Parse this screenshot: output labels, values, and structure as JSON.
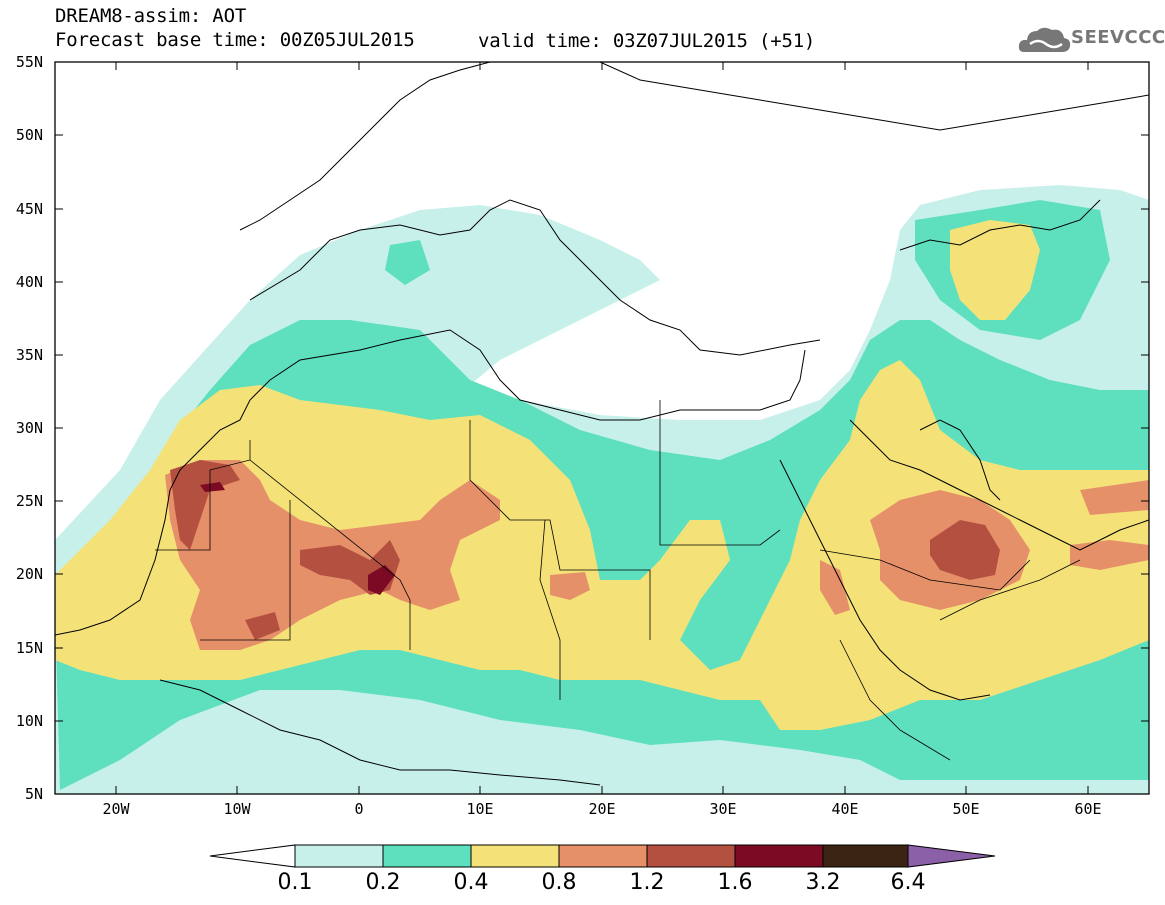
{
  "header": {
    "title": "DREAM8-assim: AOT",
    "base_time": "Forecast base time: 00Z05JUL2015",
    "valid_time": "valid time: 03Z07JUL2015 (+51)"
  },
  "logo": {
    "text": "SEEVCCC",
    "icon": "cloud-icon"
  },
  "map": {
    "lon_range": [
      -25,
      65
    ],
    "lat_range": [
      5,
      55
    ],
    "lat_labels": [
      "55N",
      "50N",
      "45N",
      "40N",
      "35N",
      "30N",
      "25N",
      "20N",
      "15N",
      "10N",
      "5N"
    ],
    "lon_labels": [
      "20W",
      "10W",
      "0",
      "10E",
      "20E",
      "30E",
      "40E",
      "50E",
      "60E"
    ]
  },
  "colorbar": {
    "levels": [
      "0.1",
      "0.2",
      "0.4",
      "0.8",
      "1.2",
      "1.6",
      "3.2",
      "6.4"
    ],
    "colors": [
      "#ffffff",
      "#c8f0ea",
      "#5ee0be",
      "#f4e278",
      "#e6906a",
      "#b45040",
      "#7c0a24",
      "#3c2414",
      "#8c60a8"
    ]
  }
}
